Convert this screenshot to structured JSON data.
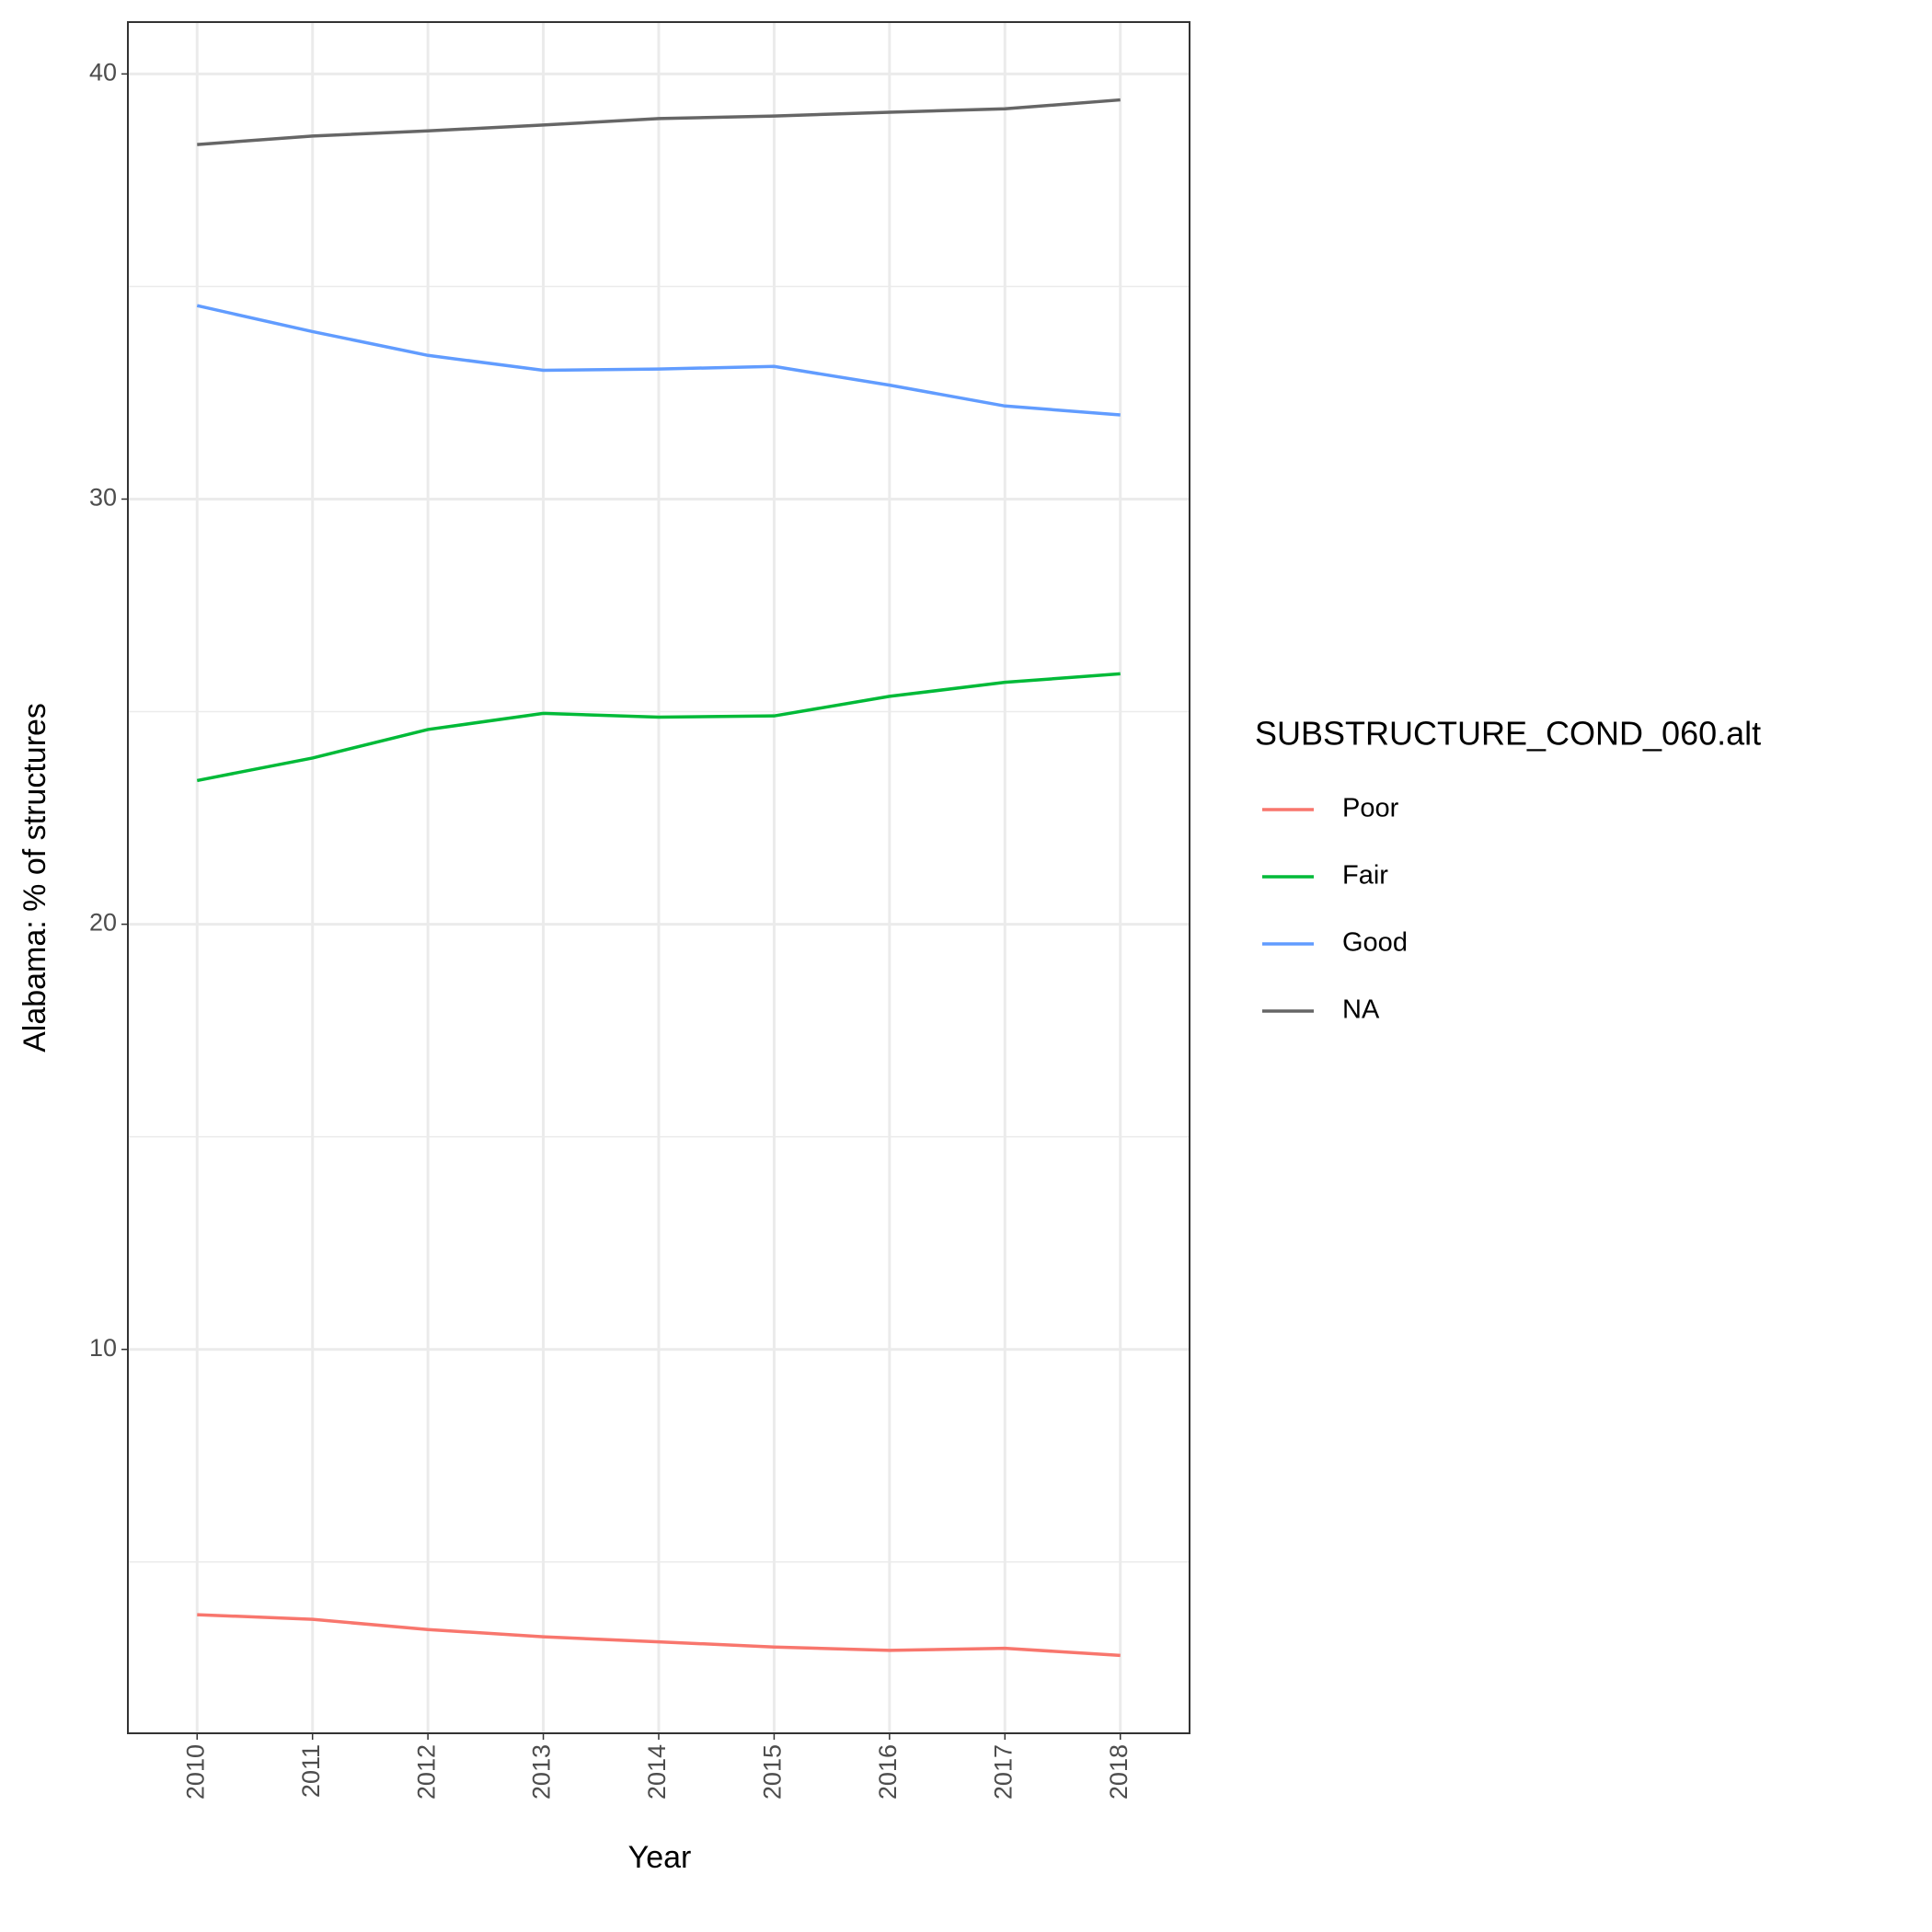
{
  "chart_data": {
    "type": "line",
    "y_label": "Alabama: % of structures",
    "x_label": "Year",
    "legend_title": "SUBSTRUCTURE_COND_060.alt",
    "legend_position": "right",
    "categories": [
      "2010",
      "2011",
      "2012",
      "2013",
      "2014",
      "2015",
      "2016",
      "2017",
      "2018"
    ],
    "ylim": [
      0.97,
      41.22
    ],
    "yticks": [
      10,
      20,
      30,
      40
    ],
    "minor_yticks": [
      5,
      15,
      25,
      35
    ],
    "grid": true,
    "series": [
      {
        "name": "Poor",
        "color": "#f8766d",
        "values": [
          3.76,
          3.65,
          3.41,
          3.24,
          3.12,
          3.0,
          2.92,
          2.97,
          2.8
        ]
      },
      {
        "name": "Fair",
        "color": "#00ba38",
        "values": [
          23.38,
          23.91,
          24.58,
          24.96,
          24.87,
          24.9,
          25.36,
          25.69,
          25.89
        ]
      },
      {
        "name": "Good",
        "color": "#619cff",
        "values": [
          34.55,
          33.94,
          33.38,
          33.03,
          33.06,
          33.12,
          32.68,
          32.19,
          31.98
        ]
      },
      {
        "name": "NA",
        "color": "#666666",
        "values": [
          38.34,
          38.54,
          38.66,
          38.8,
          38.95,
          39.01,
          39.1,
          39.18,
          39.39
        ]
      }
    ]
  }
}
